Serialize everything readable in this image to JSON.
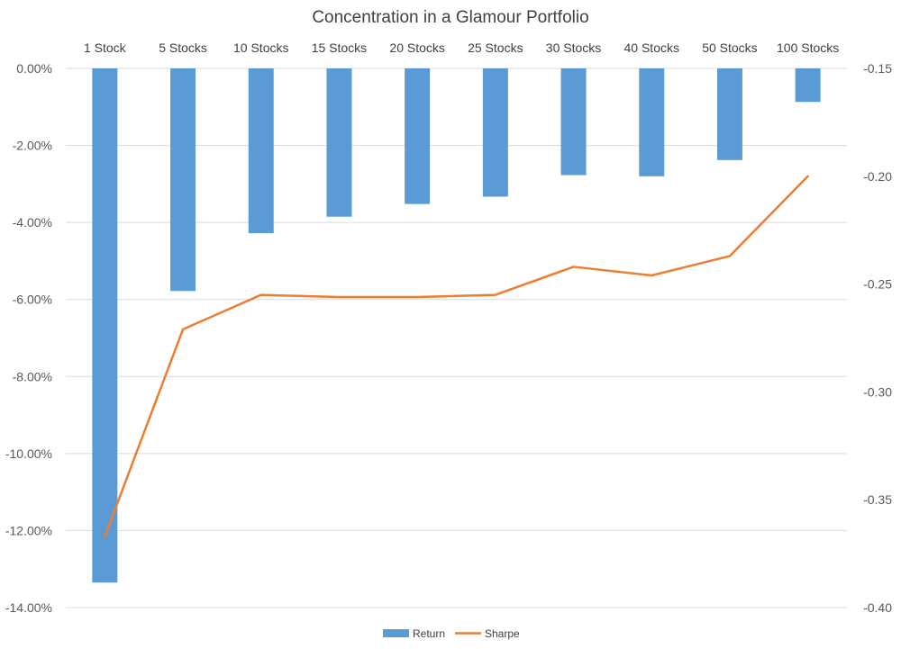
{
  "chart_data": {
    "type": "bar",
    "title": "Concentration in a Glamour Portfolio",
    "categories": [
      "1 Stock",
      "5 Stocks",
      "10 Stocks",
      "15 Stocks",
      "20 Stocks",
      "25 Stocks",
      "30 Stocks",
      "40 Stocks",
      "50 Stocks",
      "100 Stocks"
    ],
    "series": [
      {
        "name": "Return",
        "type": "bar",
        "axis": "left",
        "color": "#5b9bd5",
        "values": [
          -13.35,
          -5.78,
          -4.28,
          -3.85,
          -3.52,
          -3.33,
          -2.77,
          -2.8,
          -2.38,
          -0.87
        ]
      },
      {
        "name": "Sharpe",
        "type": "line",
        "axis": "right",
        "color": "#ed7d31",
        "values": [
          -0.367,
          -0.271,
          -0.255,
          -0.256,
          -0.256,
          -0.255,
          -0.242,
          -0.246,
          -0.237,
          -0.2
        ]
      }
    ],
    "y_left": {
      "ylim": [
        -14,
        0
      ],
      "ticks": [
        0,
        -2,
        -4,
        -6,
        -8,
        -10,
        -12,
        -14
      ],
      "tick_labels": [
        "0.00%",
        "-2.00%",
        "-4.00%",
        "-6.00%",
        "-8.00%",
        "-10.00%",
        "-12.00%",
        "-14.00%"
      ]
    },
    "y_right": {
      "ylim": [
        -0.4,
        -0.15
      ],
      "ticks": [
        -0.15,
        -0.2,
        -0.25,
        -0.3,
        -0.35,
        -0.4
      ],
      "tick_labels": [
        "-0.15",
        "-0.20",
        "-0.25",
        "-0.30",
        "-0.35",
        "-0.40"
      ]
    },
    "legend_position": "bottom",
    "grid": true,
    "x_axis_position": "top"
  }
}
